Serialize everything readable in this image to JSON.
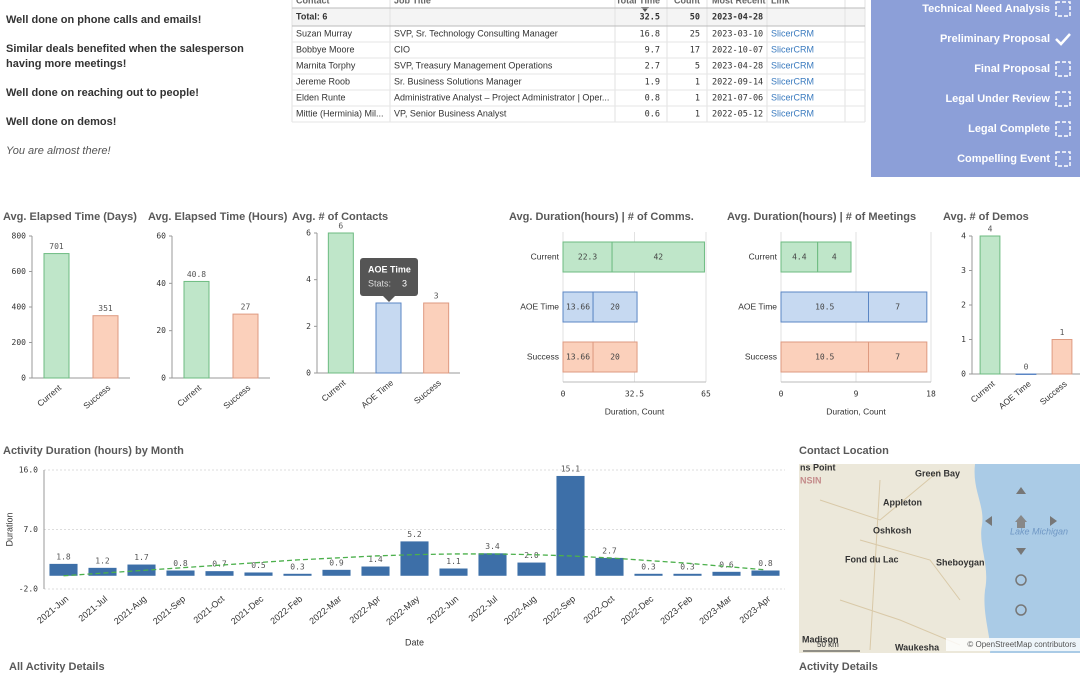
{
  "messages": [
    {
      "text": "Well done on phone calls and emails!",
      "style": "bold"
    },
    {
      "text": "Similar deals benefited when the salesperson having more meetings!",
      "style": "bold"
    },
    {
      "text": "Well done on reaching out to people!",
      "style": "bold"
    },
    {
      "text": "Well done on demos!",
      "style": "bold"
    },
    {
      "text": "You are almost there!",
      "style": "italic"
    }
  ],
  "table": {
    "columns": [
      "Contact",
      "Job Title",
      "Total Time",
      "Count",
      "Most Recent",
      "Link"
    ],
    "total": [
      "Total: 6",
      32.5,
      50,
      "2023-04-28"
    ],
    "rows": [
      [
        "Suzan Murray",
        "SVP, Sr. Technology Consulting Manager",
        16.8,
        25,
        "2023-03-10",
        "SlicerCRM"
      ],
      [
        "Bobbye Moore",
        "CIO",
        9.7,
        17,
        "2022-10-07",
        "SlicerCRM"
      ],
      [
        "Marnita Torphy",
        "SVP, Treasury Management Operations",
        2.7,
        5,
        "2023-04-28",
        "SlicerCRM"
      ],
      [
        "Jereme Roob",
        "Sr. Business Solutions Manager",
        1.9,
        1,
        "2022-09-14",
        "SlicerCRM"
      ],
      [
        "Elden Runte",
        "Administrative Analyst – Project Administrator | Oper...",
        0.8,
        1,
        "2021-07-06",
        "SlicerCRM"
      ],
      [
        "Mittie (Herminia) Mil...",
        "VP, Senior Business Analyst",
        0.6,
        1,
        "2022-05-12",
        "SlicerCRM"
      ]
    ]
  },
  "stages": [
    {
      "label": "Technical Need Analysis",
      "done": false
    },
    {
      "label": "Preliminary Proposal",
      "done": true
    },
    {
      "label": "Final Proposal",
      "done": false
    },
    {
      "label": "Legal Under Review",
      "done": false
    },
    {
      "label": "Legal Complete",
      "done": false
    },
    {
      "label": "Compelling Event",
      "done": false
    }
  ],
  "chart_data": [
    {
      "type": "bar",
      "title": "Avg. Elapsed Time (Days)",
      "categories": [
        "Current",
        "Success"
      ],
      "values": [
        701,
        351
      ],
      "colors": [
        "#bfe6c9",
        "#fbd0bb"
      ],
      "edge_colors": [
        "#6dbb81",
        "#de9a80"
      ],
      "ylim": [
        0,
        800
      ],
      "yticks": [
        0,
        200,
        400,
        600,
        800
      ]
    },
    {
      "type": "bar",
      "title": "Avg. Elapsed Time (Hours)",
      "categories": [
        "Current",
        "Success"
      ],
      "values": [
        40.8,
        27
      ],
      "colors": [
        "#bfe6c9",
        "#fbd0bb"
      ],
      "edge_colors": [
        "#6dbb81",
        "#de9a80"
      ],
      "ylim": [
        0,
        60
      ],
      "yticks": [
        0,
        20,
        40,
        60
      ]
    },
    {
      "type": "bar",
      "title": "Avg. # of Contacts",
      "categories": [
        "Current",
        "AOE Time",
        "Success"
      ],
      "values": [
        6,
        3,
        3
      ],
      "colors": [
        "#bfe6c9",
        "#c6d9f1",
        "#fbd0bb"
      ],
      "edge_colors": [
        "#6dbb81",
        "#5b86c4",
        "#de9a80"
      ],
      "ylim": [
        0,
        6
      ],
      "yticks": [
        0,
        2,
        4,
        6
      ],
      "tooltip": {
        "title": "AOE Time",
        "label": "Stats:",
        "value": 3
      }
    },
    {
      "type": "hbar",
      "title": "Avg. Duration(hours) | # of Comms.",
      "categories": [
        "Current",
        "AOE Time",
        "Success"
      ],
      "series": [
        {
          "values": [
            22.3,
            13.66,
            13.66
          ]
        },
        {
          "values": [
            42,
            20,
            20
          ]
        }
      ],
      "colors": [
        "#bfe6c9",
        "#c6d9f1",
        "#fbd0bb"
      ],
      "edge_colors": [
        "#6dbb81",
        "#5b86c4",
        "#de9a80"
      ],
      "xlim": [
        0,
        65
      ],
      "xticks": [
        0,
        32.5,
        65
      ],
      "xlabel": "Duration, Count",
      "grid": true
    },
    {
      "type": "hbar",
      "title": "Avg. Duration(hours) | # of Meetings",
      "categories": [
        "Current",
        "AOE Time",
        "Success"
      ],
      "series": [
        {
          "values": [
            4.4,
            10.5,
            10.5
          ]
        },
        {
          "values": [
            4,
            7,
            7
          ]
        }
      ],
      "colors": [
        "#bfe6c9",
        "#c6d9f1",
        "#fbd0bb"
      ],
      "edge_colors": [
        "#6dbb81",
        "#5b86c4",
        "#de9a80"
      ],
      "xlim": [
        0,
        18
      ],
      "xticks": [
        0,
        9,
        18
      ],
      "xlabel": "Duration, Count",
      "grid": true
    },
    {
      "type": "bar",
      "title": "Avg. # of Demos",
      "categories": [
        "Current",
        "AOE Time",
        "Success"
      ],
      "values": [
        4,
        0,
        1
      ],
      "colors": [
        "#bfe6c9",
        "#c6d9f1",
        "#fbd0bb"
      ],
      "edge_colors": [
        "#6dbb81",
        "#5b86c4",
        "#de9a80"
      ],
      "ylim": [
        0,
        4
      ],
      "yticks": [
        0,
        1,
        2,
        3,
        4
      ]
    },
    {
      "type": "bar",
      "title": "Activity Duration (hours) by Month",
      "categories": [
        "2021-Jun",
        "2021-Jul",
        "2021-Aug",
        "2021-Sep",
        "2021-Oct",
        "2021-Dec",
        "2022-Feb",
        "2022-Mar",
        "2022-Apr",
        "2022-May",
        "2022-Jun",
        "2022-Jul",
        "2022-Aug",
        "2022-Sep",
        "2022-Oct",
        "2022-Dec",
        "2023-Feb",
        "2023-Mar",
        "2023-Apr"
      ],
      "values": [
        1.8,
        1.2,
        1.7,
        0.8,
        0.7,
        0.5,
        0.3,
        0.9,
        1.4,
        5.2,
        1.1,
        3.4,
        2.0,
        15.1,
        2.7,
        0.3,
        0.3,
        0.6,
        0.8
      ],
      "value_labels": [
        "1.8",
        "1.2",
        "1.7",
        "0.8",
        "0.7",
        "0.5",
        "0.3",
        "0.9",
        "1.4",
        "5.2",
        "1.1",
        "3.4",
        "2.0",
        "15.1",
        "2.7",
        "0.3",
        "0.3",
        "0.6",
        "0.8"
      ],
      "color": "#3d6fa8",
      "ylim": [
        -2,
        16
      ],
      "yticks": [
        {
          "value": -2,
          "label": "-2.0"
        },
        {
          "value": 7,
          "label": "7.0"
        },
        {
          "value": 16,
          "label": "16.0"
        }
      ],
      "xlabel": "Date",
      "ylabel": "Duration",
      "grid": true,
      "trend": {
        "color": "#4cb04c",
        "values": [
          0,
          0.4,
          0.8,
          1.2,
          1.6,
          2.0,
          2.4,
          2.7,
          3.0,
          3.2,
          3.3,
          3.3,
          3.2,
          3.0,
          2.7,
          2.3,
          1.9,
          1.4,
          0.9
        ]
      }
    }
  ],
  "map": {
    "title": "Contact Location",
    "labels": [
      "ns Point",
      "NSIN",
      "Green Bay",
      "Appleton",
      "Oshkosh",
      "Fond du Lac",
      "Sheboygan",
      "Lake Michigan",
      "Madison",
      "Waukesha"
    ],
    "scale": "50 km",
    "attribution": "© OpenStreetMap contributors"
  },
  "sections": [
    "All Activity Details",
    "Activity Details"
  ]
}
